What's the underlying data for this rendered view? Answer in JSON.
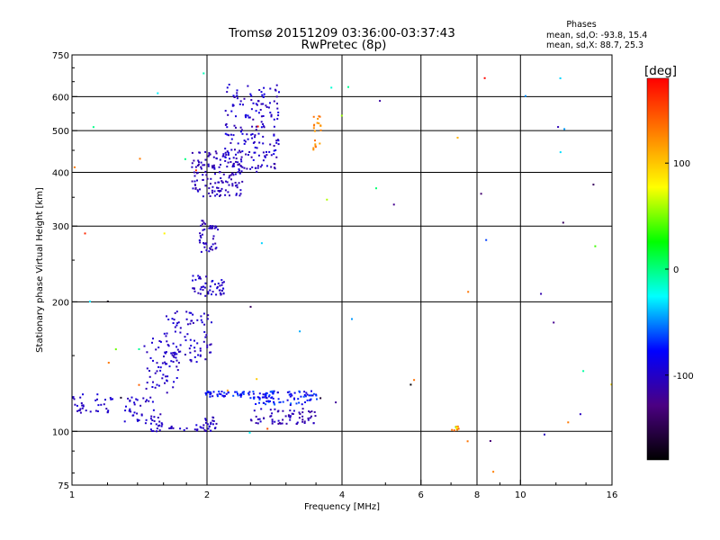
{
  "header": {
    "title_line1": "Tromsø 20151209 03:36:00-03:37:43",
    "title_line2": "RwPretec (8p)",
    "phases_title": "Phases",
    "phases_o": "mean, sd,O: -93.8, 15.4",
    "phases_x": "mean, sd,X:  88.7, 25.3"
  },
  "colorbar": {
    "label": "[deg]",
    "range": [
      -180,
      180
    ],
    "ticks": [
      {
        "value": 100,
        "label": "100"
      },
      {
        "value": 0,
        "label": "0"
      },
      {
        "value": -100,
        "label": "-100"
      }
    ],
    "stops": [
      "#000000",
      "#4b0082",
      "#0000ff",
      "#00ffff",
      "#00ff00",
      "#ffff00",
      "#ff7f00",
      "#ff0000"
    ]
  },
  "chart_data": {
    "type": "scatter",
    "title": "Tromsø 20151209 03:36:00-03:37:43",
    "subtitle": "RwPretec (8p)",
    "xlabel": "Frequency [MHz]",
    "ylabel": "Stationary phase Virtual Height [km]",
    "x_scale": "log",
    "y_scale": "log",
    "xlim": [
      1,
      16
    ],
    "ylim": [
      75,
      750
    ],
    "x_ticks": [
      {
        "value": 1,
        "label": "1"
      },
      {
        "value": 2,
        "label": "2"
      },
      {
        "value": 4,
        "label": "4"
      },
      {
        "value": 6,
        "label": "6"
      },
      {
        "value": 8,
        "label": "8"
      },
      {
        "value": 10,
        "label": "10"
      },
      {
        "value": 16,
        "label": "16"
      }
    ],
    "x_gridlines": [
      2,
      4,
      6,
      8,
      10
    ],
    "y_ticks": [
      {
        "value": 75,
        "label": "75"
      },
      {
        "value": 100,
        "label": "100"
      },
      {
        "value": 200,
        "label": "200"
      },
      {
        "value": 300,
        "label": "300"
      },
      {
        "value": 400,
        "label": "400"
      },
      {
        "value": 500,
        "label": "500"
      },
      {
        "value": 600,
        "label": "600"
      },
      {
        "value": 750,
        "label": "750"
      }
    ],
    "y_gridlines": [
      100,
      200,
      300,
      400,
      500,
      600
    ],
    "grid": true,
    "color_variable": "phase [deg]",
    "point_groups": [
      {
        "x": [
          1.0,
          1.25
        ],
        "y": [
          110,
          122
        ],
        "phase": [
          -90,
          -110
        ],
        "n": 35
      },
      {
        "x": [
          1.3,
          1.6
        ],
        "y": [
          104,
          120
        ],
        "phase": [
          -90,
          -110
        ],
        "n": 45
      },
      {
        "x": [
          1.45,
          1.75
        ],
        "y": [
          123,
          165
        ],
        "phase": [
          -90,
          -110
        ],
        "n": 60
      },
      {
        "x": [
          1.5,
          2.0
        ],
        "y": [
          100,
          104
        ],
        "phase": [
          -90,
          -110
        ],
        "n": 30
      },
      {
        "x": [
          1.6,
          2.05
        ],
        "y": [
          145,
          190
        ],
        "phase": [
          -90,
          -110
        ],
        "n": 80
      },
      {
        "x": [
          1.85,
          2.2
        ],
        "y": [
          205,
          230
        ],
        "phase": [
          -90,
          -110
        ],
        "n": 50
      },
      {
        "x": [
          1.92,
          2.12
        ],
        "y": [
          260,
          310
        ],
        "phase": [
          -95,
          -115
        ],
        "n": 45
      },
      {
        "x": [
          1.85,
          2.4
        ],
        "y": [
          350,
          455
        ],
        "phase": [
          -95,
          -115
        ],
        "n": 150
      },
      {
        "x": [
          2.2,
          2.9
        ],
        "y": [
          400,
          640
        ],
        "phase": [
          -85,
          -115
        ],
        "n": 180
      },
      {
        "x": [
          1.98,
          2.5
        ],
        "y": [
          120,
          124
        ],
        "phase": [
          -60,
          -100
        ],
        "n": 45
      },
      {
        "x": [
          2.5,
          3.55
        ],
        "y": [
          115,
          124
        ],
        "phase": [
          -55,
          -100
        ],
        "n": 90
      },
      {
        "x": [
          2.5,
          3.55
        ],
        "y": [
          104,
          113
        ],
        "phase": [
          -95,
          -120
        ],
        "n": 65
      },
      {
        "x": [
          1.98,
          2.1
        ],
        "y": [
          100,
          108
        ],
        "phase": [
          -95,
          -110
        ],
        "n": 20
      },
      {
        "x": [
          3.45,
          3.6
        ],
        "y": [
          450,
          540
        ],
        "phase": [
          110,
          140
        ],
        "n": 20
      },
      {
        "x": [
          6.9,
          7.3
        ],
        "y": [
          100,
          103
        ],
        "phase": [
          40,
          160
        ],
        "n": 12
      },
      {
        "x": [
          1.0,
          16.0
        ],
        "y": [
          75,
          700
        ],
        "phase": [
          -180,
          180
        ],
        "n": 60
      }
    ]
  }
}
